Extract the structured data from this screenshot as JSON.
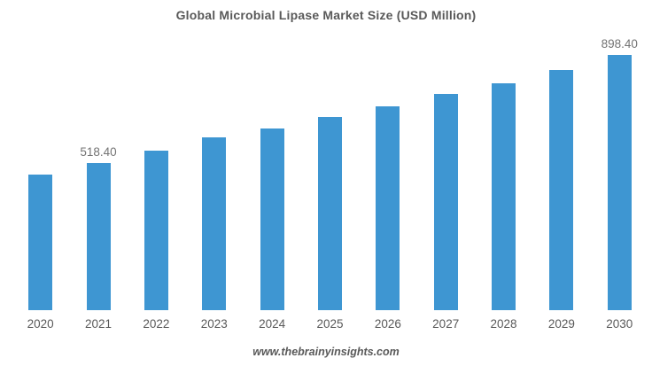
{
  "title": "Global Microbial Lipase Market Size (USD Million)",
  "footer": "www.thebrainyinsights.com",
  "colors": {
    "bar": "#3E96D2",
    "title_text": "#595959",
    "axis_text": "#595959",
    "value_label_text": "#737373",
    "background": "#FFFFFF"
  },
  "chart_data": {
    "type": "bar",
    "title": "Global Microbial Lipase Market Size (USD Million)",
    "categories": [
      "2020",
      "2021",
      "2022",
      "2023",
      "2024",
      "2025",
      "2026",
      "2027",
      "2028",
      "2029",
      "2030"
    ],
    "values": [
      478,
      518.4,
      562,
      608,
      640,
      681,
      719,
      760,
      800,
      847,
      898.4
    ],
    "data_labels": [
      "",
      "518.40",
      "",
      "",
      "",
      "",
      "",
      "",
      "",
      "",
      "898.40"
    ],
    "xlabel": "",
    "ylabel": "",
    "ylim": [
      0,
      960
    ],
    "grid": false,
    "legend": false,
    "y_axis_visible": false,
    "x_axis_line_visible": false,
    "bar_color": "#3E96D2",
    "notes": "Only the 2021 and 2030 bars carry visible data labels; other values are estimated from bar heights."
  }
}
